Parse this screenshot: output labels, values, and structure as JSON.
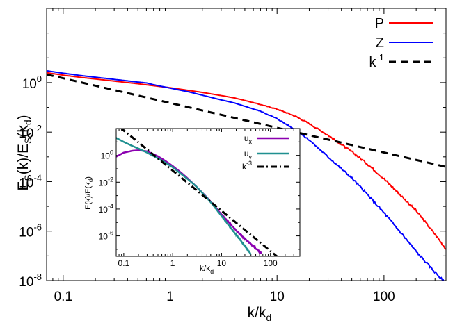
{
  "chart_data": [
    {
      "type": "line",
      "title": "",
      "xlabel": "k/k",
      "xlabel_sub": "d",
      "ylabel_parts": [
        "E",
        "S",
        "(k)/E",
        "S",
        "(k",
        "d",
        ")"
      ],
      "xscale": "log",
      "yscale": "log",
      "xlim": [
        0.07,
        380
      ],
      "ylim": [
        1e-08,
        1000
      ],
      "xticks": [
        0.1,
        1,
        10,
        100
      ],
      "xtick_labels": [
        "0.1",
        "1",
        "10",
        "100"
      ],
      "yticks": [
        1e-08,
        1e-06,
        0.0001,
        0.01,
        1
      ],
      "ytick_labels": [
        {
          "base": "10",
          "exp": "-8"
        },
        {
          "base": "10",
          "exp": "-6"
        },
        {
          "base": "10",
          "exp": "-4"
        },
        {
          "base": "10",
          "exp": "-2"
        },
        {
          "base": "10",
          "exp": "0"
        }
      ],
      "legend_position": "top-right",
      "series": [
        {
          "name": "P",
          "name_sup": "",
          "color": "#ff0000",
          "style": "solid",
          "noise": 0.045,
          "x": [
            0.07,
            0.1,
            0.15,
            0.2,
            0.3,
            0.5,
            0.7,
            1,
            1.5,
            2,
            3,
            4,
            5,
            7,
            10,
            15,
            20,
            30,
            50,
            70,
            100,
            150,
            200,
            300,
            380
          ],
          "y": [
            2.5,
            2.0,
            1.6,
            1.4,
            1.15,
            0.9,
            0.75,
            0.62,
            0.48,
            0.4,
            0.3,
            0.24,
            0.19,
            0.13,
            0.085,
            0.043,
            0.022,
            0.0075,
            0.0016,
            0.00052,
            0.00013,
            2.3e-05,
            6.6e-06,
            7.5e-07,
            1.9e-07
          ]
        },
        {
          "name": "Z",
          "name_sup": "",
          "color": "#0000ff",
          "style": "solid",
          "noise": 0.045,
          "x": [
            0.07,
            0.1,
            0.15,
            0.2,
            0.3,
            0.5,
            0.6,
            0.7,
            1,
            1.5,
            2,
            3,
            4,
            5,
            7,
            10,
            15,
            20,
            30,
            50,
            70,
            100,
            150,
            200,
            300,
            380
          ],
          "y": [
            3.0,
            2.4,
            1.9,
            1.65,
            1.35,
            1.05,
            0.97,
            0.82,
            0.6,
            0.42,
            0.31,
            0.2,
            0.15,
            0.11,
            0.07,
            0.035,
            0.012,
            0.0048,
            0.001,
            0.00014,
            3e-05,
            5.5e-06,
            7e-07,
            1.5e-07,
            2.2e-08,
            7.5e-09
          ]
        },
        {
          "name": "k",
          "name_sup": "-1",
          "color": "#000000",
          "style": "dashed",
          "noise": 0,
          "x": [
            0.07,
            380
          ],
          "y": [
            2.14,
            0.000394
          ]
        }
      ]
    },
    {
      "type": "line",
      "title": "",
      "xlabel": "k/k",
      "xlabel_sub": "d",
      "ylabel": "E(k)/E(k",
      "ylabel_sub": "d",
      "ylabel_end": ")",
      "xscale": "log",
      "yscale": "log",
      "xlim": [
        0.07,
        400
      ],
      "ylim": [
        3e-08,
        100
      ],
      "xticks": [
        0.1,
        1,
        10,
        100
      ],
      "xtick_labels": [
        "0.1",
        "1",
        "10",
        "100"
      ],
      "yticks": [
        1e-06,
        0.0001,
        0.01,
        1
      ],
      "ytick_labels": [
        {
          "base": "10",
          "exp": "-6"
        },
        {
          "base": "10",
          "exp": "-4"
        },
        {
          "base": "10",
          "exp": "-2"
        },
        {
          "base": "10",
          "exp": "0"
        }
      ],
      "legend_position": "top-right",
      "series": [
        {
          "name": "u",
          "name_sub": "x",
          "name_sup": "",
          "color": "#8b00b0",
          "style": "solid",
          "noise": 0.06,
          "x": [
            0.07,
            0.1,
            0.15,
            0.2,
            0.3,
            0.5,
            0.7,
            1,
            1.5,
            2,
            3,
            5,
            7,
            10,
            15,
            20,
            30,
            50,
            65
          ],
          "y": [
            0.8,
            1.6,
            2.2,
            2.4,
            2.0,
            0.85,
            0.4,
            0.16,
            0.05,
            0.02,
            0.005,
            0.00075,
            0.00018,
            4e-05,
            8e-06,
            2.5e-06,
            6e-07,
            1.2e-07,
            5e-08
          ]
        },
        {
          "name": "u",
          "name_sub": "y",
          "name_sup": "",
          "color": "#209090",
          "style": "solid",
          "noise": 0.06,
          "x": [
            0.07,
            0.1,
            0.15,
            0.2,
            0.3,
            0.5,
            0.7,
            1,
            1.5,
            2,
            3,
            5,
            7,
            10,
            15,
            20,
            30,
            40
          ],
          "y": [
            20,
            10,
            5,
            3.2,
            1.6,
            0.6,
            0.3,
            0.13,
            0.04,
            0.018,
            0.005,
            0.0007,
            0.00016,
            3e-05,
            4.5e-06,
            1.2e-06,
            1.8e-07,
            4e-08
          ]
        },
        {
          "name": "k",
          "name_sub": "",
          "name_sup": "-3",
          "color": "#000000",
          "style": "dashdot",
          "noise": 0,
          "x": [
            0.085,
            160
          ],
          "y": [
            120,
            1.83e-08
          ]
        }
      ]
    }
  ]
}
